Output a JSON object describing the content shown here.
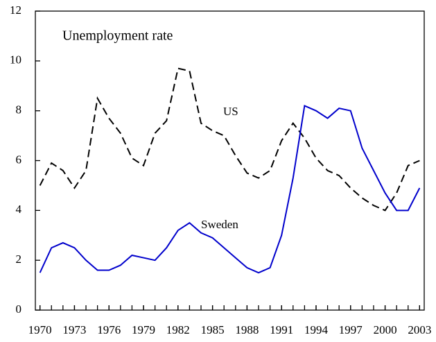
{
  "chart_data": {
    "type": "line",
    "title": "Unemployment rate",
    "x": [
      1970,
      1971,
      1972,
      1973,
      1974,
      1975,
      1976,
      1977,
      1978,
      1979,
      1980,
      1981,
      1982,
      1983,
      1984,
      1985,
      1986,
      1987,
      1988,
      1989,
      1990,
      1991,
      1992,
      1993,
      1994,
      1995,
      1996,
      1997,
      1998,
      1999,
      2000,
      2001,
      2002,
      2003
    ],
    "series": [
      {
        "name": "US",
        "color": "#000000",
        "dash": true,
        "values": [
          5.0,
          5.9,
          5.6,
          4.9,
          5.6,
          8.5,
          7.7,
          7.1,
          6.1,
          5.8,
          7.1,
          7.6,
          9.7,
          9.6,
          7.5,
          7.2,
          7.0,
          6.2,
          5.5,
          5.3,
          5.6,
          6.8,
          7.5,
          6.9,
          6.1,
          5.6,
          5.4,
          4.9,
          4.5,
          4.2,
          4.0,
          4.7,
          5.8,
          6.0
        ]
      },
      {
        "name": "Sweden",
        "color": "#0000cc",
        "dash": false,
        "values": [
          1.5,
          2.5,
          2.7,
          2.5,
          2.0,
          1.6,
          1.6,
          1.8,
          2.2,
          2.1,
          2.0,
          2.5,
          3.2,
          3.5,
          3.1,
          2.9,
          2.5,
          2.1,
          1.7,
          1.5,
          1.7,
          3.0,
          5.3,
          8.2,
          8.0,
          7.7,
          8.1,
          8.0,
          6.5,
          5.6,
          4.7,
          4.0,
          4.0,
          4.9
        ]
      }
    ],
    "xlim": [
      1969.6,
      2003.4
    ],
    "xticks": [
      1970,
      1973,
      1976,
      1979,
      1982,
      1985,
      1988,
      1991,
      1994,
      1997,
      2000,
      2003
    ],
    "ylim": [
      0,
      12
    ],
    "yticks": [
      0,
      2,
      4,
      6,
      8,
      10,
      12
    ]
  }
}
